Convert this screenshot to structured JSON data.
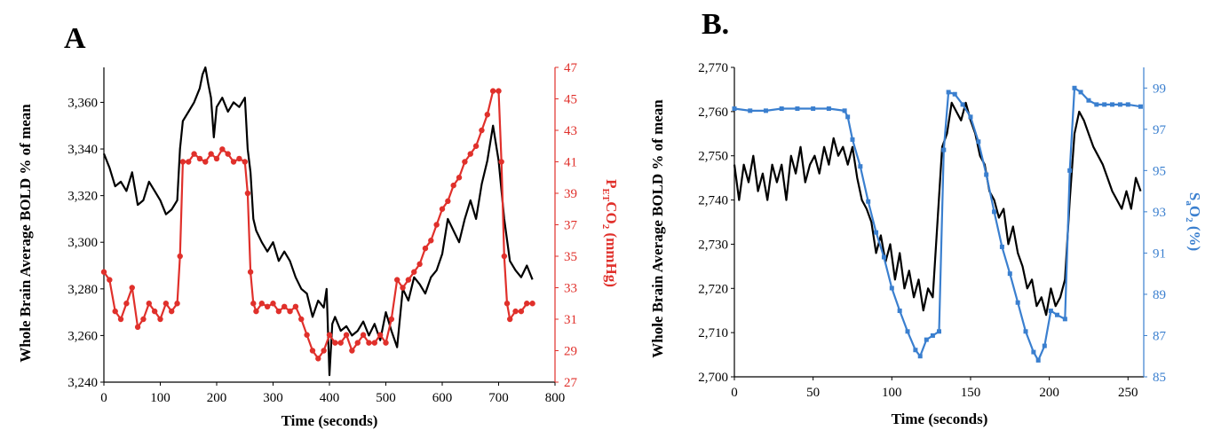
{
  "chart_data": [
    {
      "panel_label": "A",
      "type": "line",
      "xlabel": "Time (seconds)",
      "xlim": [
        0,
        800
      ],
      "xticks": [
        "0",
        "100",
        "200",
        "300",
        "400",
        "500",
        "600",
        "700",
        "800"
      ],
      "ylabel": "Whole Brain Average BOLD % of mean",
      "ylim": [
        3240,
        3375
      ],
      "yticks": [
        "3,240",
        "3,260",
        "3,280",
        "3,300",
        "3,320",
        "3,340",
        "3,360"
      ],
      "y2label_parts": {
        "p": "P",
        "sub": "ET",
        "co": "CO",
        "sub2": "2",
        "unit": " (mmHg)"
      },
      "y2lim": [
        27,
        47
      ],
      "y2ticks": [
        "27",
        "29",
        "31",
        "33",
        "35",
        "37",
        "39",
        "41",
        "43",
        "45",
        "47"
      ],
      "series": [
        {
          "name": "BOLD",
          "color": "#000000",
          "axis": "left",
          "x": [
            0,
            10,
            20,
            30,
            40,
            50,
            60,
            70,
            80,
            90,
            100,
            110,
            120,
            130,
            135,
            140,
            150,
            160,
            170,
            175,
            180,
            185,
            190,
            195,
            200,
            210,
            220,
            230,
            240,
            250,
            255,
            260,
            265,
            270,
            280,
            290,
            300,
            310,
            320,
            330,
            340,
            350,
            360,
            370,
            380,
            390,
            395,
            400,
            405,
            410,
            420,
            430,
            440,
            450,
            460,
            470,
            480,
            490,
            500,
            510,
            520,
            530,
            540,
            550,
            560,
            570,
            580,
            590,
            600,
            610,
            620,
            630,
            640,
            650,
            660,
            670,
            680,
            690,
            700,
            710,
            720,
            730,
            740,
            750,
            760
          ],
          "y": [
            3338,
            3332,
            3324,
            3326,
            3322,
            3330,
            3316,
            3318,
            3326,
            3322,
            3318,
            3312,
            3314,
            3318,
            3340,
            3352,
            3356,
            3360,
            3366,
            3372,
            3375,
            3368,
            3362,
            3345,
            3358,
            3362,
            3356,
            3360,
            3358,
            3362,
            3340,
            3330,
            3310,
            3305,
            3300,
            3296,
            3300,
            3292,
            3296,
            3292,
            3285,
            3280,
            3278,
            3268,
            3275,
            3272,
            3280,
            3243,
            3265,
            3268,
            3262,
            3264,
            3260,
            3262,
            3266,
            3260,
            3265,
            3258,
            3270,
            3262,
            3255,
            3280,
            3275,
            3285,
            3282,
            3278,
            3285,
            3288,
            3295,
            3310,
            3305,
            3300,
            3310,
            3318,
            3310,
            3325,
            3335,
            3350,
            3335,
            3310,
            3292,
            3288,
            3285,
            3290,
            3284
          ]
        },
        {
          "name": "PETCO2",
          "color": "#e0302b",
          "axis": "right",
          "x": [
            0,
            10,
            20,
            30,
            40,
            50,
            60,
            70,
            80,
            90,
            100,
            110,
            120,
            130,
            135,
            140,
            150,
            160,
            170,
            180,
            190,
            200,
            210,
            220,
            230,
            240,
            250,
            255,
            260,
            265,
            270,
            280,
            290,
            300,
            310,
            320,
            330,
            340,
            350,
            360,
            370,
            380,
            390,
            400,
            410,
            420,
            430,
            440,
            450,
            460,
            470,
            480,
            490,
            500,
            510,
            520,
            530,
            540,
            550,
            560,
            570,
            580,
            590,
            600,
            610,
            620,
            630,
            640,
            650,
            660,
            670,
            680,
            690,
            700,
            705,
            710,
            715,
            720,
            730,
            740,
            750,
            760
          ],
          "y": [
            34,
            33.5,
            31.5,
            31,
            32,
            33,
            30.5,
            31,
            32,
            31.5,
            31,
            32,
            31.5,
            32,
            35,
            41,
            41,
            41.5,
            41.2,
            41,
            41.5,
            41.2,
            41.8,
            41.5,
            41,
            41.2,
            41,
            39,
            34,
            32,
            31.5,
            32,
            31.8,
            32,
            31.5,
            31.8,
            31.5,
            31.8,
            31,
            30,
            29,
            28.5,
            29,
            30,
            29.5,
            29.5,
            30,
            29,
            29.5,
            30,
            29.5,
            29.5,
            30,
            29.5,
            31,
            33.5,
            33,
            33.5,
            34,
            34.5,
            35.5,
            36,
            37,
            38,
            38.5,
            39.5,
            40,
            41,
            41.5,
            42,
            43,
            44,
            45.5,
            45.5,
            41,
            35,
            32,
            31,
            31.5,
            31.5,
            32,
            32
          ]
        }
      ]
    },
    {
      "panel_label": "B.",
      "type": "line",
      "xlabel": "Time (seconds)",
      "xlim": [
        0,
        260
      ],
      "xticks": [
        "0",
        "50",
        "100",
        "150",
        "200",
        "250"
      ],
      "ylabel": "Whole Brain Average BOLD % of mean",
      "ylim": [
        2700,
        2770
      ],
      "yticks": [
        "2,700",
        "2,710",
        "2,720",
        "2,730",
        "2,740",
        "2,750",
        "2,760",
        "2,770"
      ],
      "y2label_parts": {
        "s": "S",
        "sub": "a",
        "o": "O",
        "sub2": "2",
        "unit": " (%)"
      },
      "y2lim": [
        85,
        100
      ],
      "y2ticks": [
        "85",
        "87",
        "89",
        "91",
        "93",
        "95",
        "97",
        "99"
      ],
      "series": [
        {
          "name": "BOLD",
          "color": "#000000",
          "axis": "left",
          "x": [
            0,
            3,
            6,
            9,
            12,
            15,
            18,
            21,
            24,
            27,
            30,
            33,
            36,
            39,
            42,
            45,
            48,
            51,
            54,
            57,
            60,
            63,
            66,
            69,
            72,
            75,
            78,
            81,
            84,
            87,
            90,
            93,
            96,
            99,
            102,
            105,
            108,
            111,
            114,
            117,
            120,
            123,
            126,
            129,
            132,
            135,
            138,
            141,
            144,
            147,
            150,
            153,
            156,
            159,
            162,
            165,
            168,
            171,
            174,
            177,
            180,
            183,
            186,
            189,
            192,
            195,
            198,
            201,
            204,
            207,
            210,
            213,
            216,
            219,
            222,
            225,
            228,
            231,
            234,
            237,
            240,
            243,
            246,
            249,
            252,
            255,
            258
          ],
          "y": [
            2748,
            2740,
            2748,
            2744,
            2750,
            2742,
            2746,
            2740,
            2748,
            2744,
            2748,
            2740,
            2750,
            2746,
            2752,
            2744,
            2748,
            2750,
            2746,
            2752,
            2748,
            2754,
            2750,
            2752,
            2748,
            2752,
            2745,
            2740,
            2738,
            2735,
            2728,
            2732,
            2726,
            2730,
            2722,
            2728,
            2720,
            2724,
            2718,
            2722,
            2715,
            2720,
            2718,
            2735,
            2752,
            2755,
            2762,
            2760,
            2758,
            2762,
            2758,
            2755,
            2750,
            2748,
            2742,
            2740,
            2736,
            2738,
            2730,
            2734,
            2728,
            2725,
            2720,
            2722,
            2716,
            2718,
            2714,
            2720,
            2716,
            2718,
            2722,
            2740,
            2755,
            2760,
            2758,
            2755,
            2752,
            2750,
            2748,
            2745,
            2742,
            2740,
            2738,
            2742,
            2738,
            2745,
            2742
          ]
        },
        {
          "name": "SaO2",
          "color": "#3a7fcf",
          "axis": "right",
          "x": [
            0,
            10,
            20,
            30,
            40,
            50,
            60,
            70,
            72,
            75,
            80,
            85,
            90,
            95,
            100,
            105,
            110,
            115,
            118,
            122,
            126,
            130,
            133,
            136,
            140,
            145,
            150,
            155,
            160,
            165,
            170,
            175,
            180,
            185,
            190,
            193,
            197,
            201,
            205,
            210,
            213,
            216,
            220,
            225,
            230,
            235,
            240,
            245,
            250,
            258
          ],
          "y": [
            98,
            97.9,
            97.9,
            98,
            98,
            98,
            98,
            97.9,
            97.6,
            96.5,
            95.2,
            93.5,
            92,
            90.8,
            89.3,
            88.2,
            87.2,
            86.3,
            86,
            86.8,
            87,
            87.2,
            96,
            98.8,
            98.7,
            98.2,
            97.6,
            96.4,
            94.8,
            93,
            91.3,
            90,
            88.6,
            87.2,
            86.2,
            85.8,
            86.5,
            88.2,
            88,
            87.8,
            95,
            99,
            98.8,
            98.4,
            98.2,
            98.2,
            98.2,
            98.2,
            98.2,
            98.1
          ]
        }
      ]
    }
  ]
}
